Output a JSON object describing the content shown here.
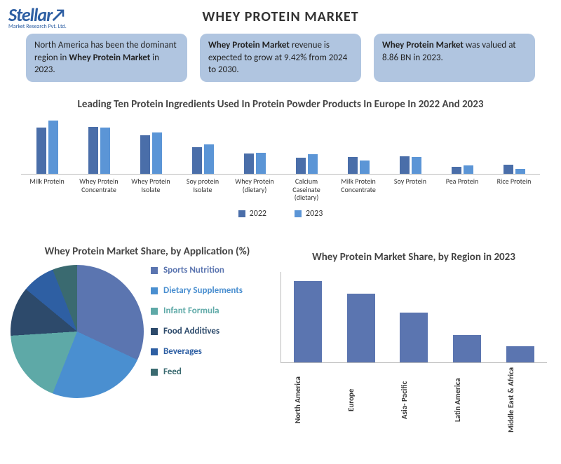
{
  "logo": {
    "main": "Stellar",
    "arrow": "↗",
    "sub": "Market Research Pvt. Ltd."
  },
  "page_title": "WHEY PROTEIN MARKET",
  "callouts": [
    {
      "prefix": "North America has been the dominant region in ",
      "bold": "Whey Protein Market",
      "suffix": " in 2023."
    },
    {
      "prefix": "",
      "bold": "Whey Protein Market",
      "suffix": " revenue is expected to grow at 9.42% from 2024 to 2030."
    },
    {
      "prefix": "",
      "bold": "Whey Protein Market",
      "suffix": " was valued at 8.86 BN in 2023."
    }
  ],
  "chart1": {
    "title": "Leading Ten Protein Ingredients Used In Protein Powder Products In Europe In 2022 And 2023",
    "ymax": 100,
    "series": [
      {
        "label": "2022",
        "color": "#4a6ea9"
      },
      {
        "label": "2023",
        "color": "#5b95d6"
      }
    ],
    "categories": [
      {
        "label": "Milk Protein",
        "v2022": 78,
        "v2023": 90
      },
      {
        "label": "Whey Protein Concentrate",
        "v2022": 80,
        "v2023": 78
      },
      {
        "label": "Whey Protein Isolate",
        "v2022": 65,
        "v2023": 70
      },
      {
        "label": "Soy protein Isolate",
        "v2022": 45,
        "v2023": 50
      },
      {
        "label": "Whey Protein (dietary)",
        "v2022": 35,
        "v2023": 36
      },
      {
        "label": "Calcium Caseinate (dietary)",
        "v2022": 27,
        "v2023": 33
      },
      {
        "label": "Milk Protein Concentrate",
        "v2022": 28,
        "v2023": 23
      },
      {
        "label": "Soy Protein",
        "v2022": 30,
        "v2023": 28
      },
      {
        "label": "Pea Protein",
        "v2022": 12,
        "v2023": 14
      },
      {
        "label": "Rice Protein",
        "v2022": 15,
        "v2023": 8
      }
    ]
  },
  "pie": {
    "title": "Whey Protein Market Share, by Application (%)",
    "slices": [
      {
        "label": "Sports Nutrition",
        "pct": 32,
        "color": "#5b75b0"
      },
      {
        "label": "Dietary Supplements",
        "pct": 24,
        "color": "#4a8fd0"
      },
      {
        "label": "Infant Formula",
        "pct": 18,
        "color": "#5ea9a7"
      },
      {
        "label": "Food Additives",
        "pct": 12,
        "color": "#2d4a6b"
      },
      {
        "label": "Beverages",
        "pct": 8,
        "color": "#2e5fa3"
      },
      {
        "label": "Feed",
        "pct": 6,
        "color": "#3a6a70"
      }
    ]
  },
  "chart2": {
    "title": "Whey Protein Market Share, by Region in 2023",
    "ymax": 100,
    "bar_color": "#5b75b0",
    "bars": [
      {
        "label": "North America",
        "value": 90
      },
      {
        "label": "Europe",
        "value": 76
      },
      {
        "label": "Asia- Pacific",
        "value": 55
      },
      {
        "label": "Latin America",
        "value": 30
      },
      {
        "label": "Middle East & Africa",
        "value": 18
      }
    ]
  }
}
